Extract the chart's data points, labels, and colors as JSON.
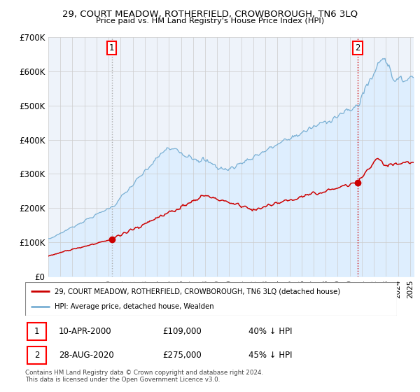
{
  "title": "29, COURT MEADOW, ROTHERFIELD, CROWBOROUGH, TN6 3LQ",
  "subtitle": "Price paid vs. HM Land Registry's House Price Index (HPI)",
  "ylim": [
    0,
    700000
  ],
  "yticks": [
    0,
    100000,
    200000,
    300000,
    400000,
    500000,
    600000,
    700000
  ],
  "ytick_labels": [
    "£0",
    "£100K",
    "£200K",
    "£300K",
    "£400K",
    "£500K",
    "£600K",
    "£700K"
  ],
  "hpi_color": "#7ab0d4",
  "hpi_fill_color": "#ddeeff",
  "property_color": "#cc0000",
  "vline1_color": "#aaaaaa",
  "vline2_color": "#cc0000",
  "marker_color": "#cc0000",
  "grid_color": "#cccccc",
  "background_color": "#ffffff",
  "chart_bg": "#eef3fa",
  "sale1_date": 2000.27,
  "sale1_price": 109000,
  "sale1_label": "1",
  "sale2_date": 2020.65,
  "sale2_price": 275000,
  "sale2_label": "2",
  "legend_line1": "29, COURT MEADOW, ROTHERFIELD, CROWBOROUGH, TN6 3LQ (detached house)",
  "legend_line2": "HPI: Average price, detached house, Wealden",
  "table_row1_date": "10-APR-2000",
  "table_row1_price": "£109,000",
  "table_row1_hpi": "40% ↓ HPI",
  "table_row2_date": "28-AUG-2020",
  "table_row2_price": "£275,000",
  "table_row2_hpi": "45% ↓ HPI",
  "footer": "Contains HM Land Registry data © Crown copyright and database right 2024.\nThis data is licensed under the Open Government Licence v3.0.",
  "xstart": 1995.0,
  "xend": 2025.3
}
